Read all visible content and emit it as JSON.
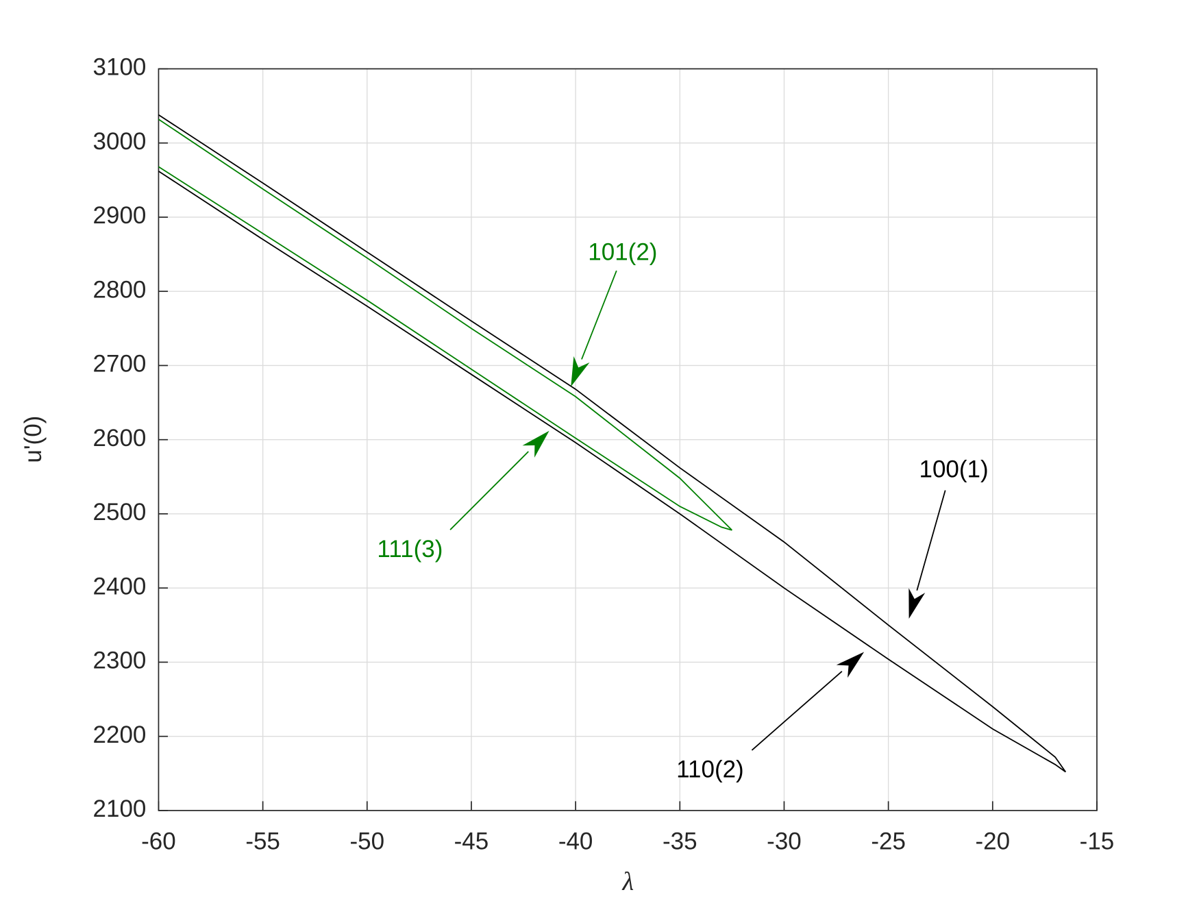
{
  "chart_data": {
    "type": "line",
    "xlabel": "λ",
    "ylabel": "u'(0)",
    "xlim": [
      -60,
      -15
    ],
    "ylim": [
      2100,
      3100
    ],
    "xticks": [
      -60,
      -55,
      -50,
      -45,
      -40,
      -35,
      -30,
      -25,
      -20,
      -15
    ],
    "yticks": [
      2100,
      2200,
      2300,
      2400,
      2500,
      2600,
      2700,
      2800,
      2900,
      3000,
      3100
    ],
    "grid": true,
    "series": [
      {
        "name": "100(1)",
        "color": "#000000",
        "x": [
          -60,
          -55,
          -50,
          -45,
          -40,
          -35,
          -30,
          -25,
          -20,
          -17,
          -16.5
        ],
        "values": [
          3038,
          2946,
          2853,
          2760,
          2668,
          2562,
          2462,
          2350,
          2240,
          2172,
          2152
        ]
      },
      {
        "name": "110(2)",
        "color": "#000000",
        "x": [
          -60,
          -55,
          -50,
          -45,
          -40,
          -35,
          -30,
          -25,
          -20,
          -17,
          -16.5
        ],
        "values": [
          2962,
          2870,
          2780,
          2688,
          2596,
          2500,
          2400,
          2304,
          2210,
          2162,
          2152
        ]
      },
      {
        "name": "101(2)",
        "color": "#008000",
        "x": [
          -60,
          -55,
          -50,
          -45,
          -40,
          -35,
          -33,
          -32.5
        ],
        "values": [
          3032,
          2938,
          2845,
          2750,
          2658,
          2548,
          2492,
          2478
        ]
      },
      {
        "name": "111(3)",
        "color": "#008000",
        "x": [
          -60,
          -55,
          -50,
          -45,
          -40,
          -35,
          -33,
          -32.5
        ],
        "values": [
          2968,
          2878,
          2788,
          2695,
          2602,
          2510,
          2482,
          2478
        ]
      }
    ]
  }
}
